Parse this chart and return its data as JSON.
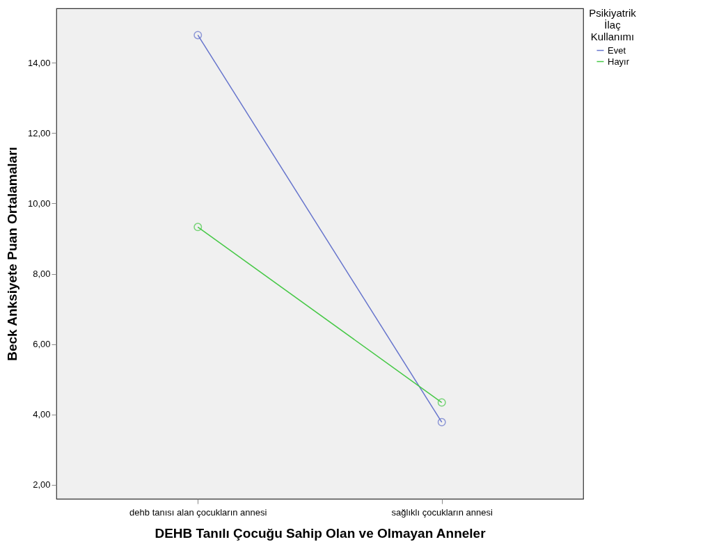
{
  "chart_data": {
    "type": "line",
    "xlabel": "DEHB Tanılı Çocuğu Sahip Olan ve Olmayan Anneler",
    "ylabel": "Beck Anksiyete Puan Ortalamaları",
    "legend_title": "Psikiyatrik İlaç Kullanımı",
    "categories": [
      "dehb tanısı alan çocukların annesi",
      "sağlıklı çocukların annesi"
    ],
    "series": [
      {
        "name": "Evet",
        "color": "#6674cc",
        "values": [
          14.79,
          3.78
        ]
      },
      {
        "name": "Hayır",
        "color": "#46c846",
        "values": [
          9.33,
          4.34
        ]
      }
    ],
    "ylim": [
      1.6,
      15.55
    ],
    "yticks": [
      {
        "value": 2,
        "label": "2,00"
      },
      {
        "value": 4,
        "label": "4,00"
      },
      {
        "value": 6,
        "label": "6,00"
      },
      {
        "value": 8,
        "label": "8,00"
      },
      {
        "value": 10,
        "label": "10,00"
      },
      {
        "value": 12,
        "label": "12,00"
      },
      {
        "value": 14,
        "label": "14,00"
      }
    ],
    "grid": false,
    "legend": "top right",
    "marker": "circle",
    "line_style": "solid"
  }
}
